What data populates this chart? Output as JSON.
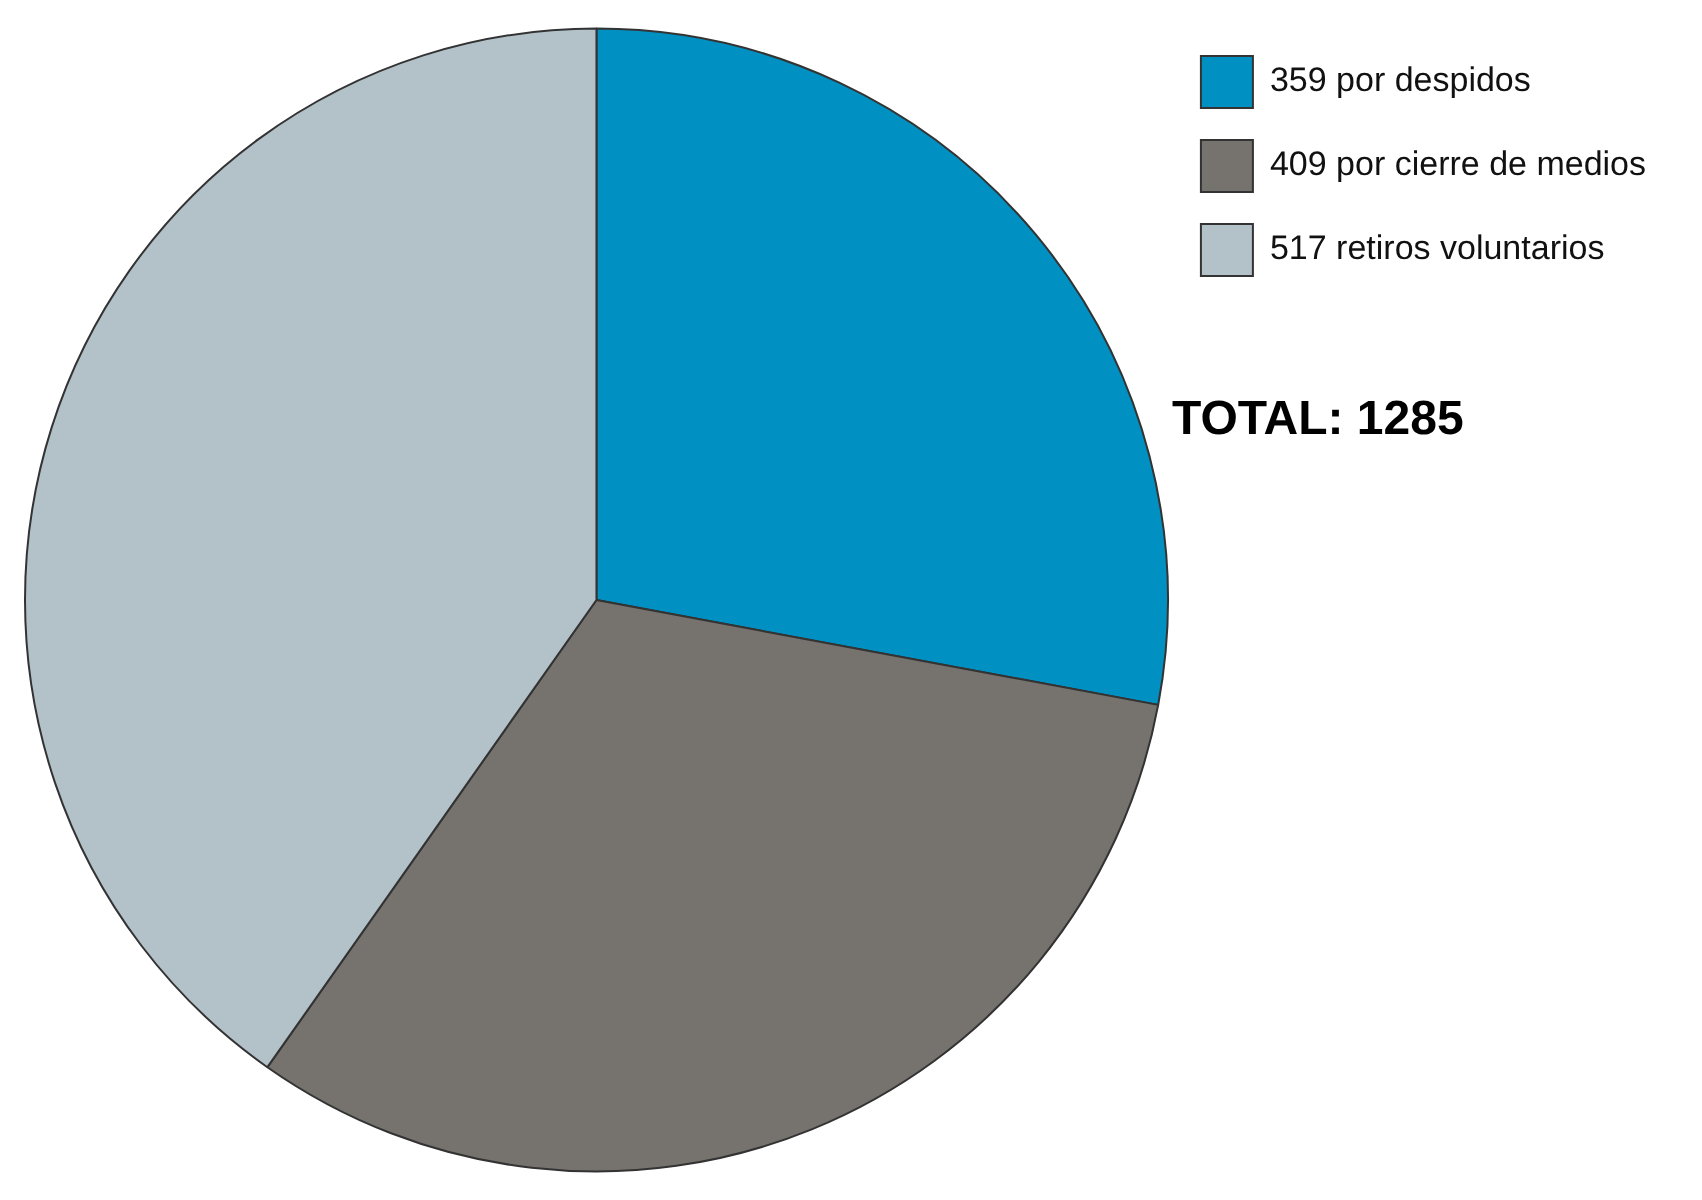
{
  "chart_data": {
    "type": "pie",
    "categories": [
      "359 por despidos",
      "409 por cierre de medios",
      "517 retiros voluntarios"
    ],
    "values": [
      359,
      409,
      517
    ],
    "colors": [
      "#0091c2",
      "#76726d",
      "#b3c2c9"
    ],
    "legend": "top right",
    "annotations": [
      "TOTAL: 1285"
    ]
  }
}
